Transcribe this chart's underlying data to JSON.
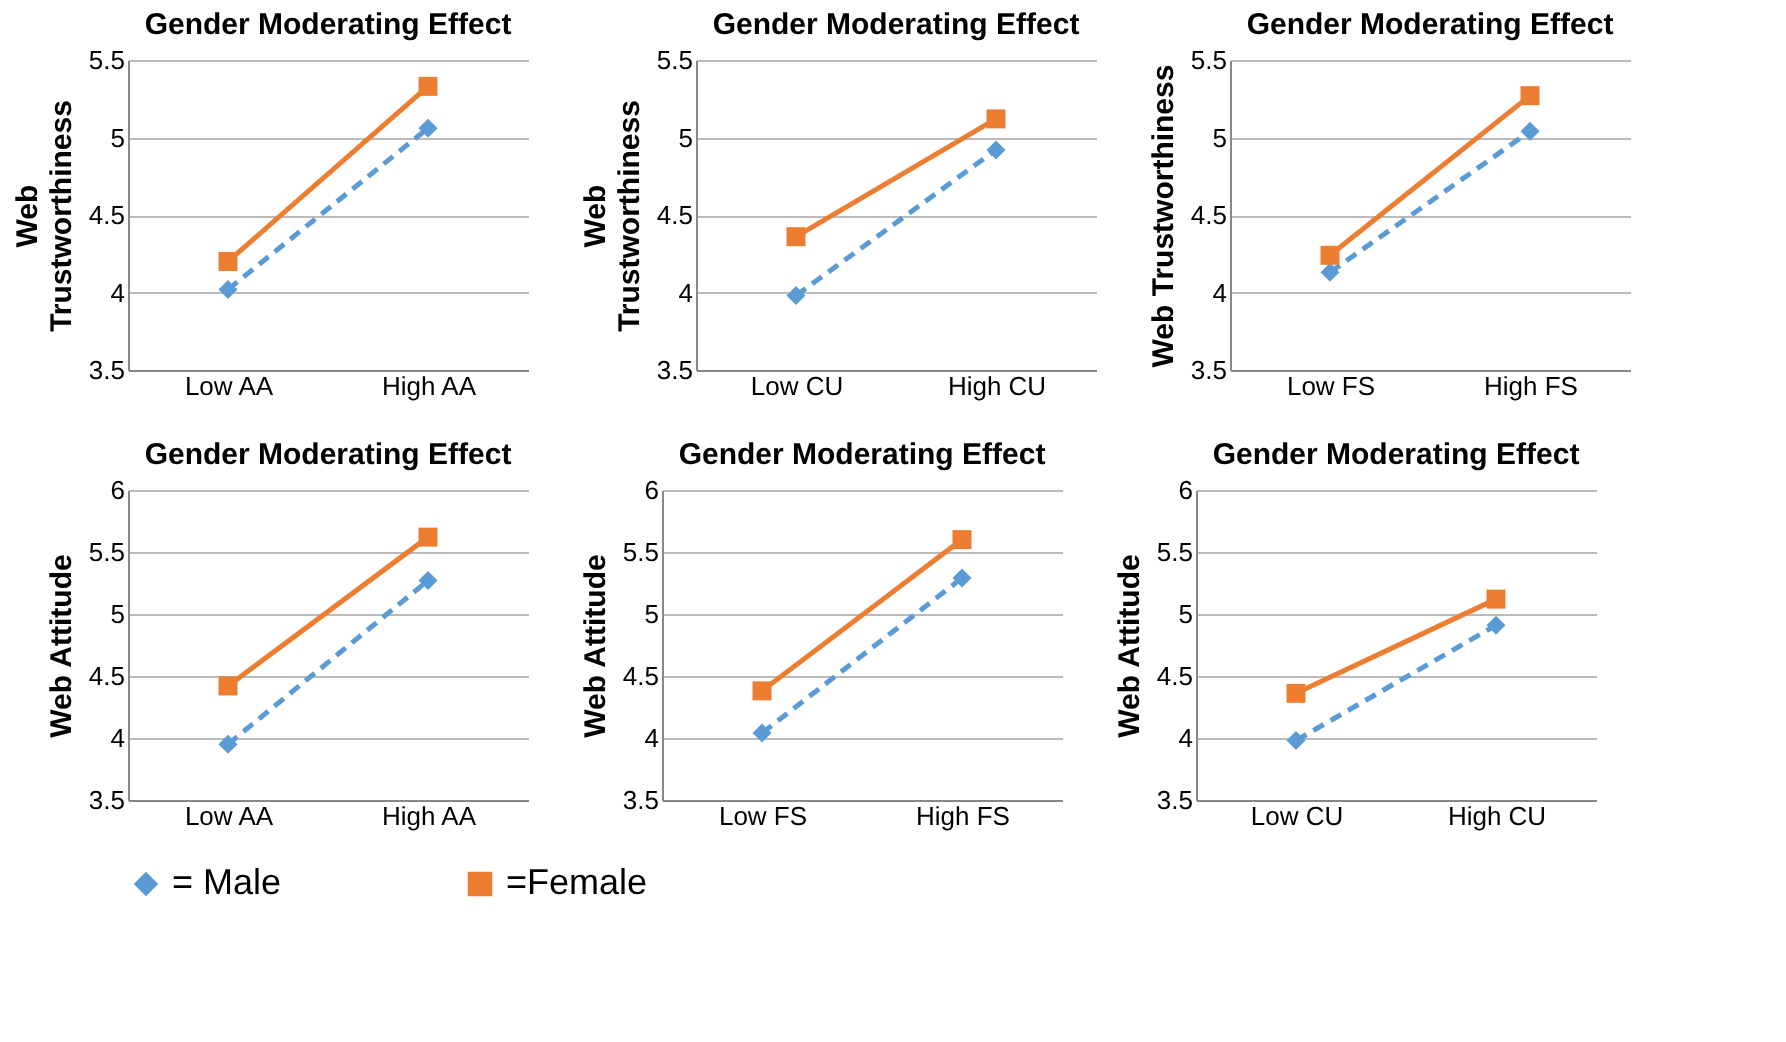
{
  "chart_data": [
    {
      "type": "line",
      "title": "Gender Moderating Effect",
      "ylabel": "Web\nTrustworthiness",
      "categories": [
        "Low AA",
        "High AA"
      ],
      "ylim": [
        3.5,
        5.5
      ],
      "yticks": [
        3.5,
        4,
        4.5,
        5,
        5.5
      ],
      "grid": "y",
      "series": [
        {
          "color": "#5b9bd5",
          "marker": "diamond",
          "line_style": "dashed",
          "values": [
            4.02,
            5.06
          ]
        },
        {
          "color": "#ed7d31",
          "marker": "square",
          "line_style": "solid",
          "values": [
            4.2,
            5.33
          ]
        }
      ]
    },
    {
      "type": "line",
      "title": "Gender Moderating Effect",
      "ylabel": "Web\nTrustworthiness",
      "categories": [
        "Low CU",
        "High CU"
      ],
      "ylim": [
        3.5,
        5.5
      ],
      "yticks": [
        3.5,
        4,
        4.5,
        5,
        5.5
      ],
      "grid": "y",
      "series": [
        {
          "color": "#5b9bd5",
          "marker": "diamond",
          "line_style": "dashed",
          "values": [
            3.98,
            4.92
          ]
        },
        {
          "color": "#ed7d31",
          "marker": "square",
          "line_style": "solid",
          "values": [
            4.36,
            5.12
          ]
        }
      ]
    },
    {
      "type": "line",
      "title": "Gender Moderating Effect",
      "ylabel": "Web Trustworthiness",
      "categories": [
        "Low FS",
        "High FS"
      ],
      "ylim": [
        3.5,
        5.5
      ],
      "yticks": [
        3.5,
        4,
        4.5,
        5,
        5.5
      ],
      "grid": "y",
      "series": [
        {
          "color": "#5b9bd5",
          "marker": "diamond",
          "line_style": "dashed",
          "values": [
            4.13,
            5.04
          ]
        },
        {
          "color": "#ed7d31",
          "marker": "square",
          "line_style": "solid",
          "values": [
            4.24,
            5.27
          ]
        }
      ]
    },
    {
      "type": "line",
      "title": "Gender Moderating Effect",
      "ylabel": "Web Attitude",
      "categories": [
        "Low AA",
        "High AA"
      ],
      "ylim": [
        3.5,
        6
      ],
      "yticks": [
        3.5,
        4,
        4.5,
        5,
        5.5,
        6
      ],
      "grid": "y",
      "series": [
        {
          "color": "#5b9bd5",
          "marker": "diamond",
          "line_style": "dashed",
          "values": [
            3.95,
            5.27
          ]
        },
        {
          "color": "#ed7d31",
          "marker": "square",
          "line_style": "solid",
          "values": [
            4.42,
            5.62
          ]
        }
      ]
    },
    {
      "type": "line",
      "title": "Gender Moderating Effect",
      "ylabel": "Web Attitude",
      "categories": [
        "Low FS",
        "High FS"
      ],
      "ylim": [
        3.5,
        6
      ],
      "yticks": [
        3.5,
        4,
        4.5,
        5,
        5.5,
        6
      ],
      "grid": "y",
      "legend": "bottom",
      "series": [
        {
          "name": "= Male",
          "color": "#5b9bd5",
          "marker": "diamond",
          "line_style": "dashed",
          "values": [
            4.04,
            5.29
          ]
        },
        {
          "name": "=Female",
          "color": "#ed7d31",
          "marker": "square",
          "line_style": "solid",
          "values": [
            4.38,
            5.6
          ]
        }
      ]
    },
    {
      "type": "line",
      "title": "Gender Moderating Effect",
      "ylabel": "Web Attitude",
      "categories": [
        "Low CU",
        "High CU"
      ],
      "ylim": [
        3.5,
        6
      ],
      "yticks": [
        3.5,
        4,
        4.5,
        5,
        5.5,
        6
      ],
      "grid": "y",
      "series": [
        {
          "color": "#5b9bd5",
          "marker": "diamond",
          "line_style": "dashed",
          "values": [
            3.98,
            4.91
          ]
        },
        {
          "color": "#ed7d31",
          "marker": "square",
          "line_style": "solid",
          "values": [
            4.36,
            5.12
          ]
        }
      ]
    }
  ]
}
